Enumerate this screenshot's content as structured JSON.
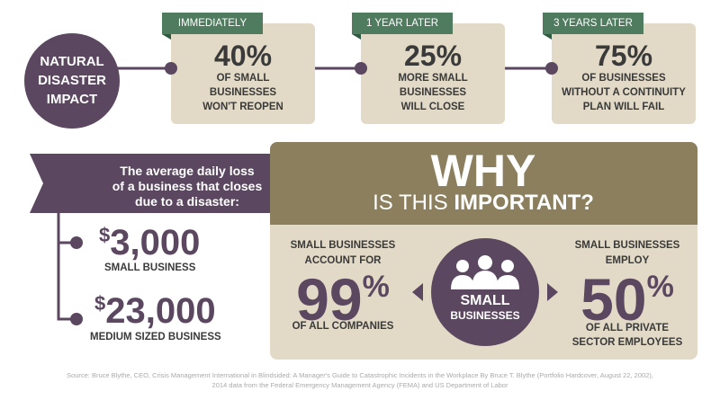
{
  "impact": {
    "title": [
      "NATURAL",
      "DISASTER",
      "IMPACT"
    ],
    "stats": [
      {
        "tag": "IMMEDIATELY",
        "value": "40%",
        "text": [
          "OF SMALL",
          "BUSINESSES",
          "WON'T REOPEN"
        ]
      },
      {
        "tag": "1 YEAR LATER",
        "value": "25%",
        "text": [
          "MORE SMALL",
          "BUSINESSES",
          "WILL CLOSE"
        ]
      },
      {
        "tag": "3 YEARS LATER",
        "value": "75%",
        "text": [
          "OF BUSINESSES",
          "WITHOUT A CONTINUITY",
          "PLAN WILL FAIL"
        ]
      }
    ]
  },
  "loss": {
    "intro": [
      "The average daily loss",
      "of a business that closes",
      "due to a disaster:"
    ],
    "items": [
      {
        "currency": "$",
        "amount": "3,000",
        "label": "SMALL BUSINESS"
      },
      {
        "currency": "$",
        "amount": "23,000",
        "label": "MEDIUM SIZED BUSINESS"
      }
    ]
  },
  "why": {
    "heading": "WHY",
    "sub_plain": "IS THIS",
    "sub_bold": "IMPORTANT?",
    "left": {
      "intro": [
        "SMALL BUSINESSES",
        "ACCOUNT FOR"
      ],
      "number": "99",
      "unit": "%",
      "text": "OF ALL COMPANIES"
    },
    "center": [
      "SMALL",
      "BUSINESSES"
    ],
    "right": {
      "intro": [
        "SMALL BUSINESSES",
        "EMPLOY"
      ],
      "number": "50",
      "unit": "%",
      "text": [
        "OF ALL PRIVATE",
        "SECTOR EMPLOYEES"
      ]
    }
  },
  "source": [
    "Source: Bruce Blythe, CEO, Crisis Management International in Blindsided: A Manager's Guide to Catastrophic Incidents in the Workplace By Bruce T. Blythe (Portfolio Hardcover, August 22, 2002),",
    "2014 data from the Federal Emergency Management Agency (FEMA) and US Department of Labor"
  ]
}
